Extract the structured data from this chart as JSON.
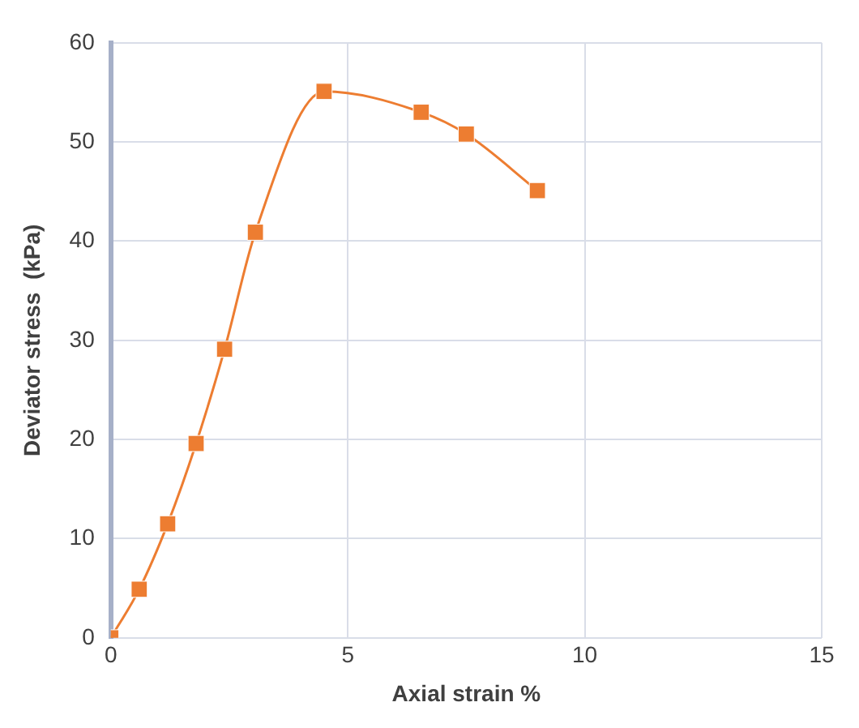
{
  "chart_data": {
    "type": "line",
    "xlabel": "Axial strain %",
    "ylabel": "Deviator stress  (kPa)",
    "x": [
      0,
      0.6,
      1.2,
      1.8,
      2.4,
      3.05,
      4.5,
      6.55,
      7.5,
      9.0
    ],
    "series": [
      {
        "color": "#ed7d31",
        "values": [
          0,
          4.9,
          11.5,
          19.6,
          29.1,
          40.9,
          55.1,
          53.0,
          50.8,
          45.1
        ]
      }
    ],
    "xlim": [
      0,
      15
    ],
    "xticks": [
      0,
      5,
      10,
      15
    ],
    "ylim": [
      0,
      60
    ],
    "yticks": [
      0,
      10,
      20,
      30,
      40,
      50,
      60
    ],
    "grid": true,
    "legend": false,
    "marker": "square",
    "line_style": "solid"
  }
}
